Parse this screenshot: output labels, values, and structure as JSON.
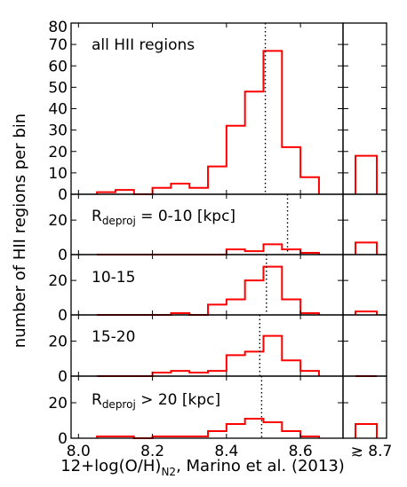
{
  "chart_data": {
    "type": "bar",
    "ylabel": "number of HII regions per bin",
    "xlabel_main": "12+log(O/H)",
    "xlabel_sub": "N2",
    "xlabel_suffix": ", Marino et al. (2013)",
    "x_ticks": [
      "8.0",
      "8.2",
      "8.4",
      "8.6"
    ],
    "x_tick_values": [
      8.0,
      8.2,
      8.4,
      8.6
    ],
    "overflow_tick": "≳ 8.7",
    "xlim": [
      7.98,
      8.715
    ],
    "bin_edges": [
      8.05,
      8.1,
      8.15,
      8.2,
      8.25,
      8.3,
      8.35,
      8.4,
      8.45,
      8.5,
      8.55,
      8.6,
      8.65
    ],
    "panels": [
      {
        "title": "all HII regions",
        "title_main": "",
        "title_sub": "",
        "title_suffix": "",
        "values": [
          1,
          2,
          0,
          3,
          5,
          3,
          13,
          32,
          48,
          67,
          22,
          8
        ],
        "overflow": 18,
        "vline": 8.505,
        "ylim": [
          0,
          80
        ],
        "yticks": [
          0,
          10,
          20,
          30,
          40,
          50,
          60,
          70,
          80
        ]
      },
      {
        "title": "",
        "title_main": "R",
        "title_sub": "deproj",
        "title_suffix": " = 0-10 [kpc]",
        "values": [
          0,
          0,
          0,
          0,
          0,
          0,
          0,
          3,
          2,
          6,
          3,
          1
        ],
        "overflow": 7,
        "vline": 8.565,
        "ylim": [
          0,
          35
        ],
        "yticks": [
          0,
          20
        ]
      },
      {
        "title": "10-15",
        "title_main": "",
        "title_sub": "",
        "title_suffix": "",
        "values": [
          0,
          0,
          0,
          0,
          1,
          0,
          6,
          9,
          20,
          28,
          9,
          1
        ],
        "overflow": 2,
        "vline": 8.508,
        "ylim": [
          0,
          35
        ],
        "yticks": [
          0,
          20
        ]
      },
      {
        "title": "15-20",
        "title_main": "",
        "title_sub": "",
        "title_suffix": "",
        "values": [
          0,
          0,
          0,
          2,
          3,
          2,
          3,
          12,
          14,
          23,
          9,
          3
        ],
        "overflow": 0,
        "vline": 8.49,
        "ylim": [
          0,
          35
        ],
        "yticks": [
          0,
          20
        ]
      },
      {
        "title": "",
        "title_main": "R",
        "title_sub": "deproj",
        "title_suffix": " > 20 [kpc]",
        "values": [
          1,
          1,
          0,
          1,
          1,
          1,
          4,
          8,
          11,
          9,
          4,
          1
        ],
        "overflow": 8,
        "vline": 8.495,
        "ylim": [
          0,
          35
        ],
        "yticks": [
          0,
          20
        ]
      }
    ]
  }
}
